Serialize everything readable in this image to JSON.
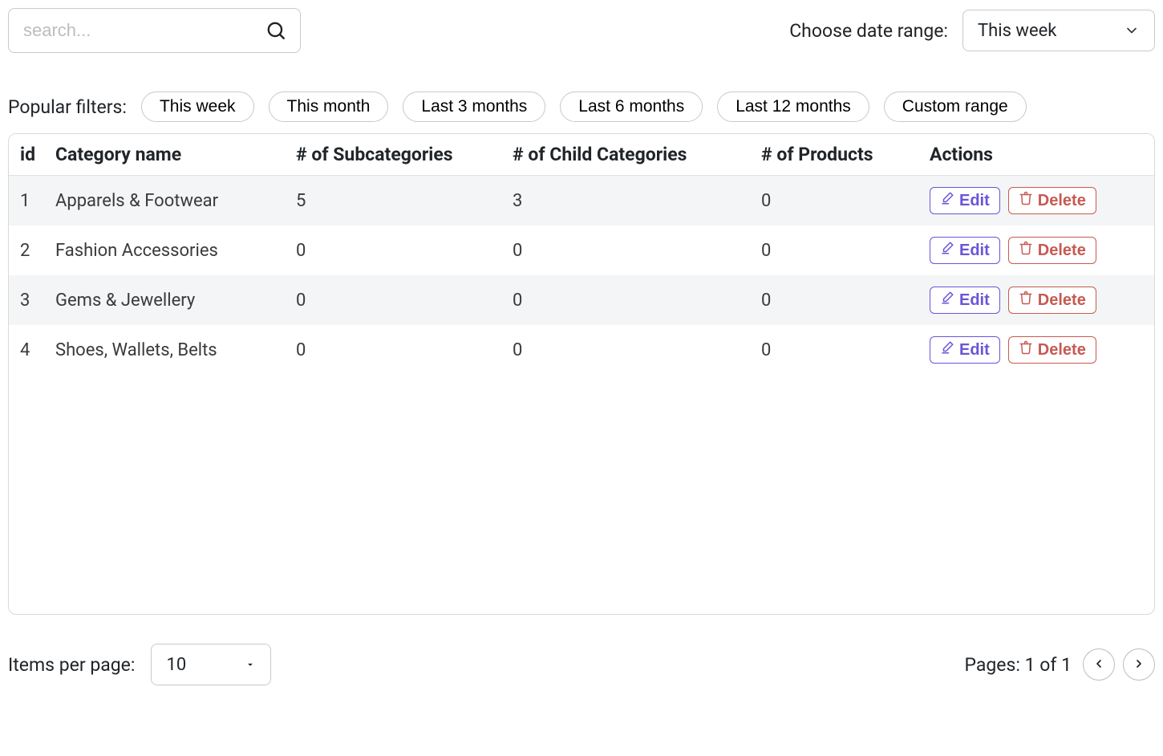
{
  "search": {
    "placeholder": "search..."
  },
  "dateRange": {
    "label": "Choose date range:",
    "selected": "This week"
  },
  "popularFilters": {
    "label": "Popular filters:",
    "items": [
      "This week",
      "This month",
      "Last 3 months",
      "Last 6 months",
      "Last 12 months",
      "Custom range"
    ]
  },
  "table": {
    "columns": [
      "id",
      "Category name",
      "# of Subcategories",
      "# of Child Categories",
      "# of Products",
      "Actions"
    ],
    "rows": [
      {
        "id": "1",
        "name": "Apparels & Footwear",
        "sub": "5",
        "child": "3",
        "prod": "0"
      },
      {
        "id": "2",
        "name": "Fashion Accessories",
        "sub": "0",
        "child": "0",
        "prod": "0"
      },
      {
        "id": "3",
        "name": "Gems & Jewellery",
        "sub": "0",
        "child": "0",
        "prod": "0"
      },
      {
        "id": "4",
        "name": "Shoes, Wallets, Belts",
        "sub": "0",
        "child": "0",
        "prod": "0"
      }
    ],
    "actions": {
      "edit": "Edit",
      "delete": "Delete"
    },
    "colors": {
      "rowAlt": "#f4f5f6",
      "editBorder": "#6a54d8",
      "deleteBorder": "#c65a52",
      "border": "#d9d9d9"
    }
  },
  "pagination": {
    "itemsPerPageLabel": "Items per page:",
    "itemsPerPageValue": "10",
    "pagesLabel": "Pages: 1 of 1"
  }
}
